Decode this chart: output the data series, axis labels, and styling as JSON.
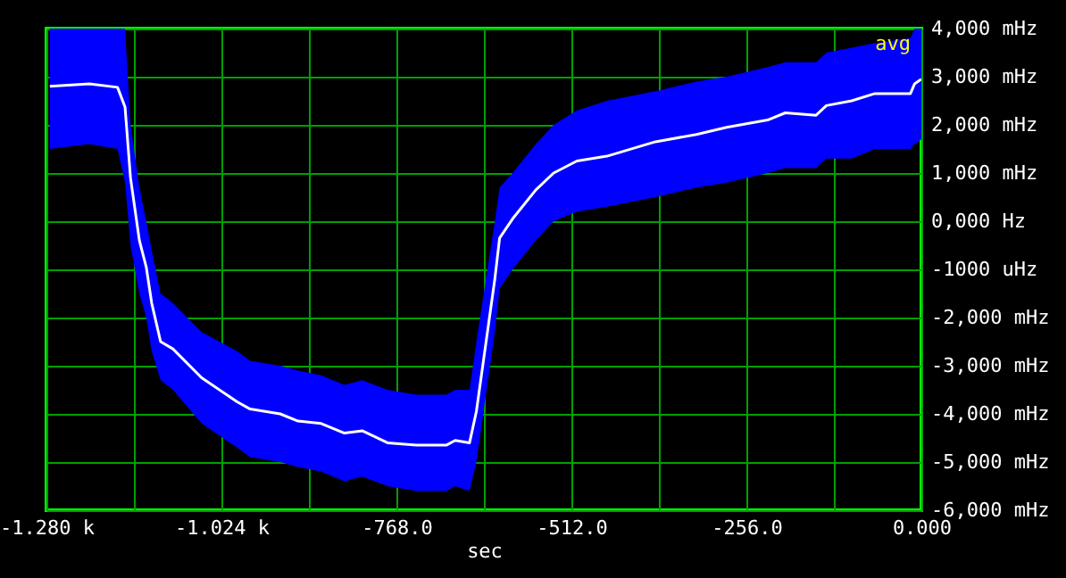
{
  "chart_data": {
    "type": "line",
    "xlabel": "sec",
    "x": [
      -1275,
      -1217,
      -1176,
      -1165,
      -1157,
      -1144,
      -1134,
      -1126,
      -1113,
      -1095,
      -1053,
      -1001,
      -982,
      -938,
      -912,
      -878,
      -844,
      -818,
      -781,
      -739,
      -695,
      -682,
      -661,
      -651,
      -624,
      -617,
      -598,
      -564,
      -538,
      -504,
      -460,
      -389,
      -329,
      -285,
      -225,
      -199,
      -154,
      -139,
      -102,
      -68,
      -16,
      -10,
      0
    ],
    "series": [
      {
        "color": "#ffffff",
        "values": [
          2800,
          2850,
          2780,
          2370,
          900,
          -400,
          -950,
          -1700,
          -2500,
          -2650,
          -3250,
          -3750,
          -3900,
          -4000,
          -4150,
          -4200,
          -4400,
          -4350,
          -4600,
          -4650,
          -4650,
          -4550,
          -4600,
          -3950,
          -1200,
          -350,
          50,
          650,
          1000,
          1250,
          1350,
          1650,
          1800,
          1950,
          2100,
          2250,
          2200,
          2400,
          2500,
          2650,
          2650,
          2850,
          2950
        ],
        "lower": [
          1500,
          1600,
          1500,
          800,
          -500,
          -1500,
          -2000,
          -2700,
          -3300,
          -3500,
          -4200,
          -4700,
          -4900,
          -5000,
          -5100,
          -5200,
          -5400,
          -5300,
          -5500,
          -5600,
          -5600,
          -5500,
          -5600,
          -5000,
          -2300,
          -1400,
          -1000,
          -400,
          0,
          200,
          300,
          500,
          700,
          800,
          1000,
          1100,
          1100,
          1300,
          1300,
          1500,
          1500,
          1600,
          1700
        ],
        "upper": [
          4000,
          4000,
          4000,
          4000,
          2000,
          700,
          0,
          -600,
          -1500,
          -1700,
          -2300,
          -2700,
          -2900,
          -3000,
          -3100,
          -3200,
          -3400,
          -3300,
          -3500,
          -3600,
          -3600,
          -3500,
          -3500,
          -2500,
          0,
          700,
          1000,
          1600,
          2000,
          2300,
          2500,
          2700,
          2900,
          3000,
          3200,
          3300,
          3300,
          3500,
          3600,
          3700,
          3800,
          4000,
          4000
        ]
      }
    ],
    "xlim": [
      -1280,
      0
    ],
    "xticks": [
      {
        "value": -1280,
        "label": "-1.280 k"
      },
      {
        "value": -1152,
        "label": null
      },
      {
        "value": -1024,
        "label": "-1.024 k"
      },
      {
        "value": -896,
        "label": null
      },
      {
        "value": -768,
        "label": "-768.0"
      },
      {
        "value": -640,
        "label": null
      },
      {
        "value": -512,
        "label": "-512.0"
      },
      {
        "value": -384,
        "label": null
      },
      {
        "value": -256,
        "label": "-256.0"
      },
      {
        "value": -128,
        "label": null
      },
      {
        "value": 0,
        "label": "0.000"
      }
    ],
    "ylim": [
      -6000,
      4000
    ],
    "yticks": [
      {
        "value": 4000,
        "label": "4,000 mHz"
      },
      {
        "value": 3000,
        "label": "3,000 mHz"
      },
      {
        "value": 2000,
        "label": "2,000 mHz"
      },
      {
        "value": 1000,
        "label": "1,000 mHz"
      },
      {
        "value": 0,
        "label": "0,000  Hz"
      },
      {
        "value": -1000,
        "label": "-1000 uHz"
      },
      {
        "value": -2000,
        "label": "-2,000 mHz"
      },
      {
        "value": -3000,
        "label": "-3,000 mHz"
      },
      {
        "value": -4000,
        "label": "-4,000 mHz"
      },
      {
        "value": -5000,
        "label": "-5,000 mHz"
      },
      {
        "value": -6000,
        "label": "-6,000 mHz"
      }
    ],
    "grid": true,
    "marker": "none",
    "line_style": "solid",
    "annotations": [
      "avg"
    ]
  }
}
